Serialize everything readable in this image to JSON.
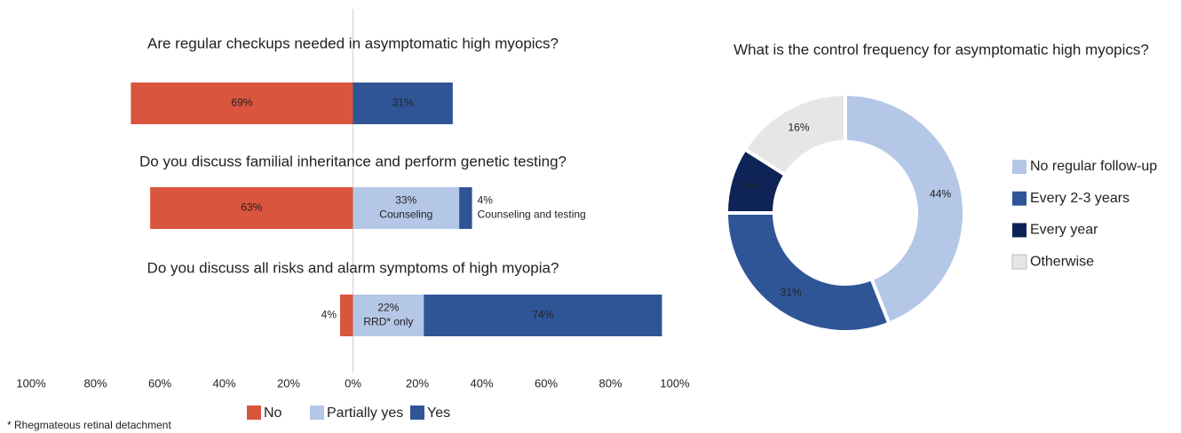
{
  "chart_data": [
    {
      "type": "diverging_bar",
      "categories": [
        "Are regular checkups needed in asymptomatic high myopics?",
        "Do you discuss familial inheritance and perform genetic testing?",
        "Do you discuss all risks and alarm symptoms of high myopia?"
      ],
      "series": [
        {
          "name": "No",
          "color": "#d9553d",
          "values": [
            -69,
            -63,
            -4
          ],
          "value_labels": [
            "69%",
            "63%",
            "4%"
          ]
        },
        {
          "name": "Partially yes",
          "color": "#b4c7e7",
          "values": [
            null,
            33,
            22
          ],
          "value_labels": [
            null,
            "33%",
            "22%"
          ],
          "notes": [
            null,
            "Counseling",
            "RRD* only"
          ]
        },
        {
          "name": "Yes",
          "color": "#2f5597",
          "values": [
            31,
            4,
            74
          ],
          "value_labels": [
            "31%",
            "4%",
            "74%"
          ],
          "notes": [
            null,
            "Counseling and testing",
            null
          ]
        }
      ],
      "xlim": [
        -100,
        100
      ],
      "xticks": [
        {
          "value": -100,
          "label": "100%"
        },
        {
          "value": -80,
          "label": "80%"
        },
        {
          "value": -60,
          "label": "60%"
        },
        {
          "value": -40,
          "label": "40%"
        },
        {
          "value": -20,
          "label": "20%"
        },
        {
          "value": 0,
          "label": "0%"
        },
        {
          "value": 20,
          "label": "20%"
        },
        {
          "value": 40,
          "label": "40%"
        },
        {
          "value": 60,
          "label": "60%"
        },
        {
          "value": 80,
          "label": "80%"
        },
        {
          "value": 100,
          "label": "100%"
        }
      ],
      "legend": "bottom",
      "footnote": "* Rhegmateous retinal detachment"
    },
    {
      "type": "donut",
      "title": "What is the control frequency for asymptomatic high myopics?",
      "categories": [
        "No regular follow-up",
        "Every 2-3 years",
        "Every year",
        "Otherwise"
      ],
      "values": [
        44,
        31,
        9,
        16
      ],
      "value_labels": [
        "44%",
        "31%",
        "9%",
        "16%"
      ],
      "colors": [
        "#b4c7e7",
        "#2f5597",
        "#0e2356",
        "#e6e6e6"
      ],
      "legend": "right"
    }
  ]
}
